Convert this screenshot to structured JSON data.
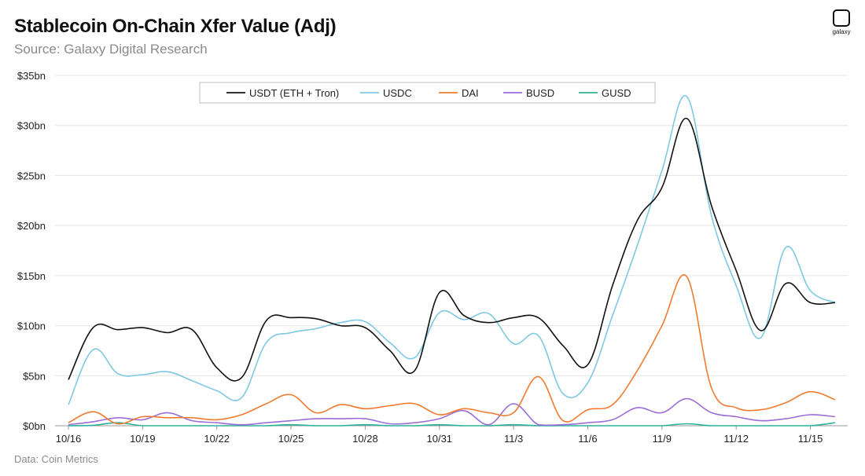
{
  "header": {
    "title": "Stablecoin On-Chain Xfer Value (Adj)",
    "subtitle": "Source: Galaxy Digital Research"
  },
  "logo": {
    "text": "galaxy",
    "icon": "galaxy-logo-icon"
  },
  "footer": {
    "text": "Data: Coin Metrics"
  },
  "chart_data": {
    "type": "line",
    "title": "Stablecoin On-Chain Xfer Value (Adj)",
    "ylim": [
      0,
      35
    ],
    "y_ticks": [
      0,
      5,
      10,
      15,
      20,
      25,
      30,
      35
    ],
    "y_tick_labels": [
      "$0bn",
      "$5bn",
      "$10bn",
      "$15bn",
      "$20bn",
      "$25bn",
      "$30bn",
      "$35bn"
    ],
    "x_tick_labels": [
      "10/16",
      "10/19",
      "10/22",
      "10/25",
      "10/28",
      "10/31",
      "11/3",
      "11/6",
      "11/9",
      "11/12",
      "11/15"
    ],
    "x": [
      "10/16",
      "10/17",
      "10/18",
      "10/19",
      "10/20",
      "10/21",
      "10/22",
      "10/23",
      "10/24",
      "10/25",
      "10/26",
      "10/27",
      "10/28",
      "10/29",
      "10/30",
      "10/31",
      "11/1",
      "11/2",
      "11/3",
      "11/4",
      "11/5",
      "11/6",
      "11/7",
      "11/8",
      "11/9",
      "11/10",
      "11/11",
      "11/12",
      "11/13",
      "11/14",
      "11/15",
      "11/16"
    ],
    "grid": true,
    "legend_position": "top",
    "series": [
      {
        "name": "USDT (ETH + Tron)",
        "color": "#111111",
        "values": [
          4.6,
          9.8,
          9.6,
          9.8,
          9.3,
          9.6,
          5.8,
          4.8,
          10.5,
          10.8,
          10.7,
          10.0,
          9.8,
          7.5,
          5.5,
          13.3,
          11.0,
          10.3,
          10.8,
          10.8,
          8.0,
          6.1,
          14.0,
          20.5,
          23.8,
          30.7,
          22.0,
          15.5,
          9.5,
          14.2,
          12.3,
          12.3
        ]
      },
      {
        "name": "USDC",
        "color": "#7ec8e3",
        "values": [
          2.1,
          7.6,
          5.2,
          5.1,
          5.4,
          4.5,
          3.5,
          2.8,
          8.3,
          9.3,
          9.7,
          10.3,
          10.4,
          8.3,
          6.8,
          11.3,
          10.6,
          11.2,
          8.2,
          9.0,
          3.2,
          4.3,
          11.0,
          18.0,
          25.5,
          32.9,
          21.0,
          14.0,
          8.8,
          17.8,
          13.5,
          12.3
        ]
      },
      {
        "name": "DAI",
        "color": "#f07b2e",
        "values": [
          0.3,
          1.4,
          0.2,
          0.9,
          0.8,
          0.8,
          0.6,
          1.1,
          2.2,
          3.1,
          1.3,
          2.1,
          1.7,
          2.0,
          2.2,
          1.1,
          1.7,
          1.3,
          1.3,
          4.9,
          0.5,
          1.6,
          2.1,
          5.5,
          10.0,
          14.9,
          3.8,
          1.8,
          1.6,
          2.3,
          3.4,
          2.6
        ]
      },
      {
        "name": "BUSD",
        "color": "#9b6dd6",
        "values": [
          0.1,
          0.4,
          0.8,
          0.6,
          1.3,
          0.5,
          0.3,
          0.1,
          0.3,
          0.5,
          0.7,
          0.7,
          0.7,
          0.2,
          0.3,
          0.7,
          1.5,
          0.1,
          2.2,
          0.1,
          0.1,
          0.3,
          0.6,
          1.8,
          1.3,
          2.7,
          1.3,
          0.9,
          0.5,
          0.7,
          1.1,
          0.9
        ]
      },
      {
        "name": "GUSD",
        "color": "#2bb39a",
        "values": [
          0.0,
          0.05,
          0.3,
          0.0,
          0.0,
          0.0,
          0.0,
          0.0,
          0.0,
          0.1,
          0.0,
          0.0,
          0.1,
          0.0,
          0.0,
          0.1,
          0.0,
          0.0,
          0.1,
          0.0,
          0.0,
          0.0,
          0.0,
          0.0,
          0.0,
          0.2,
          0.0,
          0.0,
          0.0,
          0.0,
          0.0,
          0.3
        ]
      }
    ]
  }
}
